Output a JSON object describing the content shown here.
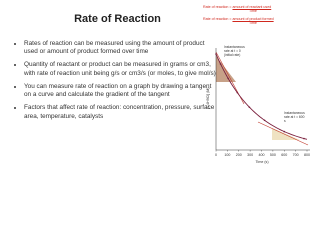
{
  "title": "Rate of Reaction",
  "formulas": [
    {
      "label": "Rate of reaction = ",
      "numerator": "amount of reactant used",
      "denominator": "Time"
    },
    {
      "label": "Rate of reaction = ",
      "numerator": "amount of product formed",
      "denominator": "Time"
    }
  ],
  "bullets": [
    "Rates of reaction can be measured using the amount of product used or amount of product formed over time",
    "Quantity of reactant or product can be measured in grams or cm3, with rate of reaction unit being g/s or cm3/s (or moles, to give mol/s)",
    "You can measure rate of reaction on a graph by drawing a tangent on a curve and calculate the gradient of the tangent",
    "Factors that affect rate of reaction: concentration, pressure, surface area, temperature, catalysts"
  ],
  "graph": {
    "y_label": "[C4H9Cl] (M)",
    "x_label": "Time (s)",
    "x_ticks": [
      "0",
      "100",
      "200",
      "300",
      "400",
      "500",
      "600",
      "700",
      "800"
    ],
    "annotations": [
      "Instantaneous rate at t = 0 (initial rate)",
      "Instantaneous rate at t = 600 s"
    ]
  }
}
